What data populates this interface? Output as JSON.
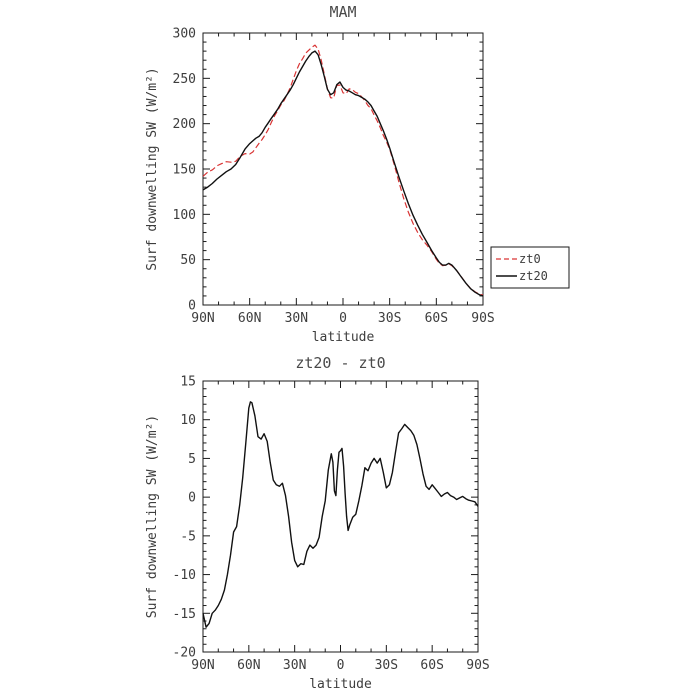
{
  "page": {
    "background": "#ffffff"
  },
  "colors": {
    "axis": "#1a1a1a",
    "zt0": "#d93434",
    "zt20": "#111111",
    "text": "#3d3d3d"
  },
  "legend": {
    "entries": [
      "zt0",
      "zt20"
    ]
  },
  "chart_data": [
    {
      "type": "line",
      "title": "MAM",
      "xlabel": "latitude",
      "ylabel": "Surf downwelling SW (W/m²)",
      "xlim": [
        90,
        -90
      ],
      "ylim": [
        0,
        300
      ],
      "xminor": 10,
      "yminor": 10,
      "xticks": [
        {
          "v": 90,
          "label": "90N"
        },
        {
          "v": 60,
          "label": "60N"
        },
        {
          "v": 30,
          "label": "30N"
        },
        {
          "v": 0,
          "label": "0"
        },
        {
          "v": -30,
          "label": "30S"
        },
        {
          "v": -60,
          "label": "60S"
        },
        {
          "v": -90,
          "label": "90S"
        }
      ],
      "yticks": [
        0,
        50,
        100,
        150,
        200,
        250,
        300
      ],
      "legend": {
        "position": "right",
        "entries": [
          "zt0",
          "zt20"
        ]
      },
      "series": [
        {
          "name": "zt0",
          "color": "#d93434",
          "dashed": true,
          "x": [
            90,
            87,
            84,
            81,
            78,
            75,
            72,
            69,
            66,
            63,
            60,
            58,
            56,
            54,
            52,
            50,
            48,
            46,
            44,
            42,
            40,
            38,
            36,
            34,
            32,
            30,
            28,
            26,
            24,
            22,
            20,
            18,
            16,
            14,
            12,
            10,
            8,
            6,
            4,
            2,
            0,
            -2,
            -4,
            -6,
            -8,
            -10,
            -12,
            -14,
            -16,
            -18,
            -20,
            -22,
            -24,
            -26,
            -28,
            -30,
            -33,
            -36,
            -39,
            -42,
            -45,
            -48,
            -51,
            -54,
            -57,
            -60,
            -62,
            -64,
            -66,
            -68,
            -70,
            -73,
            -76,
            -79,
            -82,
            -85,
            -88,
            -90
          ],
          "y": [
            142,
            146.5,
            149,
            153.5,
            156,
            158,
            157.5,
            158.5,
            164,
            167,
            166.5,
            168.8,
            173.5,
            178.2,
            182.5,
            187.8,
            193.8,
            201.5,
            208.8,
            214.4,
            220.6,
            225.2,
            231.8,
            239.5,
            248.8,
            258.2,
            266,
            271.6,
            277.7,
            281,
            284.2,
            286.6,
            282.2,
            270.2,
            254.5,
            238.5,
            228.5,
            228.4,
            242.2,
            242.5,
            234,
            233,
            238.5,
            237.6,
            234.6,
            233.2,
            229.5,
            225.5,
            220.2,
            216.6,
            209.6,
            203,
            195.6,
            187,
            179.8,
            171.8,
            154.6,
            135.2,
            117.5,
            102.6,
            90,
            80,
            72,
            66,
            58.8,
            50.4,
            45.9,
            43.4,
            43.9,
            45.6,
            43.4,
            38,
            31.3,
            24,
            18.2,
            14.5,
            11.6,
            11.2
          ]
        },
        {
          "name": "zt20",
          "color": "#111111",
          "dashed": false,
          "x": [
            90,
            87,
            84,
            81,
            78,
            75,
            72,
            69,
            66,
            63,
            60,
            58,
            56,
            54,
            52,
            50,
            48,
            46,
            44,
            42,
            40,
            38,
            36,
            34,
            32,
            30,
            28,
            26,
            24,
            22,
            20,
            18,
            16,
            14,
            12,
            10,
            8,
            6,
            4,
            2,
            0,
            -2,
            -4,
            -6,
            -8,
            -10,
            -12,
            -14,
            -16,
            -18,
            -20,
            -22,
            -24,
            -26,
            -28,
            -30,
            -33,
            -36,
            -39,
            -42,
            -45,
            -48,
            -51,
            -54,
            -57,
            -60,
            -62,
            -64,
            -66,
            -68,
            -70,
            -73,
            -76,
            -79,
            -82,
            -85,
            -88,
            -90
          ],
          "y": [
            127,
            130,
            134,
            139,
            143,
            147,
            150,
            155,
            163,
            172,
            178,
            181,
            184,
            186,
            190,
            196,
            201,
            206,
            211,
            216,
            222,
            227,
            232,
            237,
            243,
            250,
            257,
            263,
            269,
            274,
            278,
            280,
            276,
            265,
            252,
            238,
            232,
            234,
            243,
            246,
            240,
            237,
            236,
            234,
            232,
            231,
            229,
            227,
            224,
            220,
            214,
            208,
            200,
            192,
            183,
            173,
            157,
            141,
            126,
            112,
            99,
            88,
            78,
            69,
            60,
            52,
            47,
            44,
            44,
            46,
            44,
            38,
            31,
            24,
            18,
            14,
            11,
            10
          ]
        }
      ]
    },
    {
      "type": "line",
      "title": "zt20 - zt0",
      "xlabel": "latitude",
      "ylabel": "Surf downwelling SW (W/m²)",
      "xlim": [
        90,
        -90
      ],
      "ylim": [
        -20,
        15
      ],
      "xminor": 10,
      "yminor": 1,
      "xticks": [
        {
          "v": 90,
          "label": "90N"
        },
        {
          "v": 60,
          "label": "60N"
        },
        {
          "v": 30,
          "label": "30N"
        },
        {
          "v": 0,
          "label": "0"
        },
        {
          "v": -30,
          "label": "30S"
        },
        {
          "v": -60,
          "label": "60S"
        },
        {
          "v": -90,
          "label": "90S"
        }
      ],
      "yticks": [
        -20,
        -15,
        -10,
        -5,
        0,
        5,
        10,
        15
      ],
      "series": [
        {
          "name": "zt20 - zt0",
          "color": "#111111",
          "dashed": false,
          "x": [
            90,
            88,
            86,
            84,
            82,
            80,
            78,
            76,
            74,
            72,
            70,
            68,
            66,
            64,
            62,
            60,
            59,
            58,
            56,
            54,
            52,
            50,
            48,
            46,
            44,
            42,
            40,
            38,
            36,
            34,
            32,
            30,
            28,
            26,
            24,
            22,
            20,
            18,
            16,
            14,
            12,
            10,
            8,
            6,
            5,
            4,
            3,
            2,
            1,
            0,
            -1,
            -2,
            -3,
            -4,
            -5,
            -6,
            -8,
            -10,
            -12,
            -14,
            -16,
            -18,
            -20,
            -22,
            -24,
            -26,
            -28,
            -30,
            -32,
            -34,
            -36,
            -38,
            -40,
            -42,
            -44,
            -46,
            -48,
            -50,
            -52,
            -54,
            -56,
            -58,
            -60,
            -62,
            -64,
            -66,
            -68,
            -70,
            -72,
            -74,
            -76,
            -78,
            -80,
            -82,
            -84,
            -86,
            -88,
            -90
          ],
          "y": [
            -15,
            -16.8,
            -16.3,
            -15,
            -14.6,
            -14,
            -13.2,
            -12,
            -10,
            -7.5,
            -4.5,
            -3.8,
            -1,
            2.5,
            7,
            11.5,
            12.3,
            12.2,
            10.5,
            7.8,
            7.5,
            8.2,
            7.2,
            4.5,
            2.2,
            1.6,
            1.4,
            1.8,
            0.2,
            -2.5,
            -5.8,
            -8.2,
            -9,
            -8.6,
            -8.7,
            -7,
            -6.2,
            -6.6,
            -6.2,
            -5.2,
            -2.5,
            -0.5,
            3.5,
            5.6,
            4.5,
            0.8,
            0.2,
            3.5,
            5.8,
            6,
            6.3,
            4,
            0.5,
            -2.5,
            -4.3,
            -3.6,
            -2.6,
            -2.2,
            -0.5,
            1.5,
            3.8,
            3.4,
            4.4,
            5,
            4.4,
            5,
            3.2,
            1.2,
            1.6,
            3.2,
            5.8,
            8.3,
            8.8,
            9.4,
            9,
            8.6,
            8,
            6.8,
            5,
            3,
            1.4,
            1,
            1.6,
            1.1,
            0.6,
            0.1,
            0.4,
            0.6,
            0.2,
            0,
            -0.3,
            -0.1,
            0.1,
            -0.2,
            -0.4,
            -0.5,
            -0.6,
            -1.2
          ]
        }
      ]
    }
  ]
}
